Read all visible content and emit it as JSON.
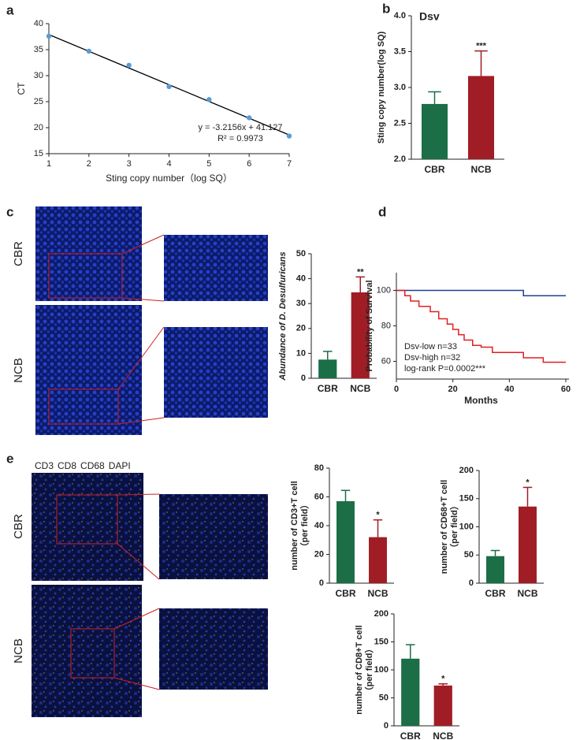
{
  "panel_labels": [
    "a",
    "b",
    "c",
    "d",
    "e"
  ],
  "image_labels": [
    "CBR",
    "NCB",
    "CBR",
    "NCB"
  ],
  "stain_legend": [
    {
      "text": "CD3",
      "color": "#e02020"
    },
    {
      "text": "CD8",
      "color": "#2aa02a"
    },
    {
      "text": "CD68",
      "color": "#e8d020"
    },
    {
      "text": "DAPI",
      "color": "#2030b0"
    }
  ],
  "chart_data": [
    {
      "type": "scatter",
      "x": [
        1,
        2,
        3,
        4,
        5,
        6,
        7
      ],
      "values": [
        37.6,
        34.7,
        32.0,
        27.9,
        25.4,
        21.9,
        18.4
      ],
      "color": "#5b9bd5",
      "fit_line": {
        "x": [
          1,
          7
        ],
        "values": [
          37.9,
          18.6
        ],
        "color": "#000000"
      },
      "xlim": [
        1,
        7
      ],
      "ylim": [
        15,
        40
      ],
      "xticks": [
        1,
        2,
        3,
        4,
        5,
        6,
        7
      ],
      "yticks": [
        15,
        20,
        25,
        30,
        35,
        40
      ],
      "xlabel": "Sting  copy number（log SQ）",
      "ylabel": "CT",
      "annotations": [
        "y = -3.2156x + 41.127",
        "R² = 0.9973"
      ]
    },
    {
      "type": "bar",
      "title": "Dsv",
      "categories": [
        "CBR",
        "NCB"
      ],
      "values": [
        2.77,
        3.16
      ],
      "errors": [
        0.17,
        0.35
      ],
      "colors": [
        "#1b6e46",
        "#a01d26"
      ],
      "ylim": [
        2,
        4
      ],
      "yticks": [
        {
          "value": 2,
          "label": "2.0"
        },
        {
          "value": 2.5,
          "label": "2.5"
        },
        {
          "value": 3,
          "label": "3.0"
        },
        {
          "value": 3.5,
          "label": "3.5"
        },
        {
          "value": 4,
          "label": "4.0"
        }
      ],
      "ylabel": "Sting  copy number(log SQ)",
      "annotation": "***"
    },
    {
      "type": "bar",
      "categories": [
        "CBR",
        "NCB"
      ],
      "values": [
        7.5,
        34.5
      ],
      "errors": [
        3.3,
        6.2
      ],
      "colors": [
        "#1b6e46",
        "#a01d26"
      ],
      "ylim": [
        0,
        50
      ],
      "yticks": [
        0,
        10,
        20,
        30,
        40,
        50
      ],
      "ylabel": "Abundance of D. Desulfuricans",
      "annotation": "**"
    },
    {
      "type": "km",
      "xlim": [
        0,
        60
      ],
      "ylim": [
        50,
        110
      ],
      "xticks": [
        0,
        20,
        40,
        60
      ],
      "yticks": [
        60,
        80,
        100
      ],
      "xlabel": "Months",
      "ylabel": "Probability of Survival",
      "series": [
        {
          "name": "Dsv-low n=33",
          "color": "#1f3f99",
          "label_color": "#222222",
          "x": [
            0,
            45,
            60
          ],
          "values": [
            100,
            97,
            97
          ]
        },
        {
          "name": "Dsv-high n=32",
          "color": "#e02020",
          "label_color": "#e02020",
          "x": [
            0,
            3,
            5,
            8,
            12,
            15,
            18,
            20,
            22,
            24,
            27,
            30,
            34,
            40,
            45,
            52,
            60
          ],
          "values": [
            100,
            97,
            94,
            91,
            88,
            84,
            81,
            78,
            75,
            72,
            69,
            68,
            65,
            65,
            62,
            59.5,
            59.5
          ]
        }
      ],
      "stat_label": "log-rank P=0.0002***"
    },
    {
      "type": "bar",
      "categories": [
        "CBR",
        "NCB"
      ],
      "values": [
        57,
        32
      ],
      "errors": [
        7.5,
        12
      ],
      "colors": [
        "#1b6e46",
        "#a01d26"
      ],
      "ylim": [
        0,
        80
      ],
      "yticks": [
        0,
        20,
        40,
        60,
        80
      ],
      "ylabel": [
        "number of CD3+T cell",
        "（per field）"
      ],
      "annotation": "*"
    },
    {
      "type": "bar",
      "categories": [
        "CBR",
        "NCB"
      ],
      "values": [
        48,
        136
      ],
      "errors": [
        10,
        34
      ],
      "colors": [
        "#1b6e46",
        "#a01d26"
      ],
      "ylim": [
        0,
        200
      ],
      "yticks": [
        0,
        50,
        100,
        150,
        200
      ],
      "ylabel": [
        "number of CD68+T cell",
        "（per field）"
      ],
      "annotation": "*"
    },
    {
      "type": "bar",
      "categories": [
        "CBR",
        "NCB"
      ],
      "values": [
        120,
        72
      ],
      "errors": [
        25,
        3
      ],
      "colors": [
        "#1b6e46",
        "#a01d26"
      ],
      "ylim": [
        0,
        200
      ],
      "yticks": [
        0,
        50,
        100,
        150,
        200
      ],
      "ylabel": [
        "number of CD8+T cell",
        "（per field）"
      ],
      "annotation": "*"
    }
  ]
}
